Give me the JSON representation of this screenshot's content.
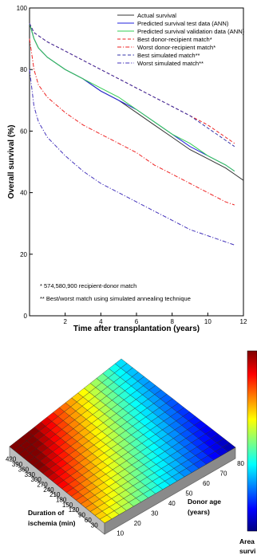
{
  "chart_data": [
    {
      "type": "line",
      "title": "",
      "xlabel": "Time after transplantation (years)",
      "ylabel": "Overall survival (%)",
      "xlim": [
        0,
        12
      ],
      "ylim": [
        0,
        100
      ],
      "xticks": [
        "2",
        "4",
        "6",
        "8",
        "10",
        "12"
      ],
      "yticks": [
        "0",
        "20",
        "40",
        "60",
        "80",
        "100"
      ],
      "grid": false,
      "legend_position": "top-right",
      "series": [
        {
          "name": "Actual survival",
          "color": "#333333",
          "dash": "solid",
          "x": [
            0,
            0.25,
            0.5,
            1,
            2,
            3,
            4,
            5,
            6,
            7,
            8,
            9,
            10,
            11,
            11.5,
            12
          ],
          "y": [
            95,
            90,
            87,
            84,
            80,
            77,
            73,
            70,
            66,
            62,
            58,
            54,
            51,
            48,
            46,
            44
          ]
        },
        {
          "name": "Predicted survival test data (ANN)",
          "color": "#2222dd",
          "dash": "solid",
          "x": [
            0,
            0.25,
            0.5,
            1,
            2,
            3,
            4,
            5,
            6,
            7,
            8,
            9,
            10,
            11,
            11.5
          ],
          "y": [
            95,
            90,
            87,
            84,
            80,
            77,
            73,
            70,
            67,
            63,
            59,
            55,
            52,
            49,
            47
          ]
        },
        {
          "name": "Predicted survival validation data (ANN)",
          "color": "#33cc55",
          "dash": "solid",
          "x": [
            0,
            0.25,
            0.5,
            1,
            2,
            3,
            4,
            5,
            6,
            7,
            8,
            9,
            10,
            11,
            11.5
          ],
          "y": [
            95,
            90,
            87,
            84,
            80,
            77,
            74,
            71,
            67,
            63,
            59,
            56,
            52,
            49,
            47
          ]
        },
        {
          "name": "Best donor-recipient match*",
          "color": "#ee2222",
          "dash": "dash",
          "x": [
            0,
            0.25,
            1,
            2,
            3,
            4,
            5,
            6,
            7,
            8,
            9,
            10,
            11,
            11.5
          ],
          "y": [
            95,
            92,
            89,
            86,
            83,
            80,
            77,
            74,
            71,
            68,
            65,
            62,
            58,
            56
          ]
        },
        {
          "name": "Worst donor-recipient match*",
          "color": "#ee2222",
          "dash": "dashdot",
          "x": [
            0,
            0.25,
            0.5,
            1,
            2,
            3,
            4,
            5,
            6,
            7,
            8,
            9,
            10,
            11,
            11.5
          ],
          "y": [
            90,
            80,
            75,
            71,
            66,
            62,
            59,
            56,
            53,
            49,
            46,
            43,
            40,
            37,
            36
          ]
        },
        {
          "name": "Best simulated match**",
          "color": "#3333aa",
          "dash": "dash",
          "x": [
            0,
            0.25,
            1,
            2,
            3,
            4,
            5,
            6,
            7,
            8,
            9,
            10,
            11,
            11.5
          ],
          "y": [
            95,
            92,
            89,
            86,
            83,
            80,
            77,
            74,
            71,
            68,
            65,
            61,
            57,
            55
          ]
        },
        {
          "name": "Worst simulated match**",
          "color": "#4433bb",
          "dash": "dashdot",
          "x": [
            0,
            0.25,
            0.5,
            1,
            2,
            3,
            4,
            5,
            6,
            7,
            8,
            9,
            10,
            11,
            11.5
          ],
          "y": [
            80,
            68,
            63,
            58,
            52,
            47,
            43,
            40,
            37,
            34,
            31,
            28,
            26,
            24,
            23
          ]
        }
      ],
      "annotations": [
        "* 574,580,900 recipient-donor match",
        "** Best/worst match using simulated annealing technique"
      ]
    },
    {
      "type": "surface",
      "xlabel_lines": [
        "Duration of",
        "ischemia (min)"
      ],
      "ylabel_lines": [
        "Donor age",
        "(years)"
      ],
      "zlabel_lines": [
        "Area",
        "survi"
      ],
      "x_ticks": [
        "420",
        "390",
        "360",
        "330",
        "300",
        "270",
        "240",
        "210",
        "180",
        "150",
        "120",
        "90",
        "60",
        "30"
      ],
      "y_ticks": [
        "10",
        "20",
        "30",
        "40",
        "50",
        "60",
        "70",
        "80"
      ],
      "colormap": "jet",
      "colors": {
        "low": "#00007f",
        "mid_low": "#0080ff",
        "mid": "#00ffff",
        "mid_high": "#ffff00",
        "high": "#ff2000",
        "top": "#7f0000"
      }
    }
  ]
}
